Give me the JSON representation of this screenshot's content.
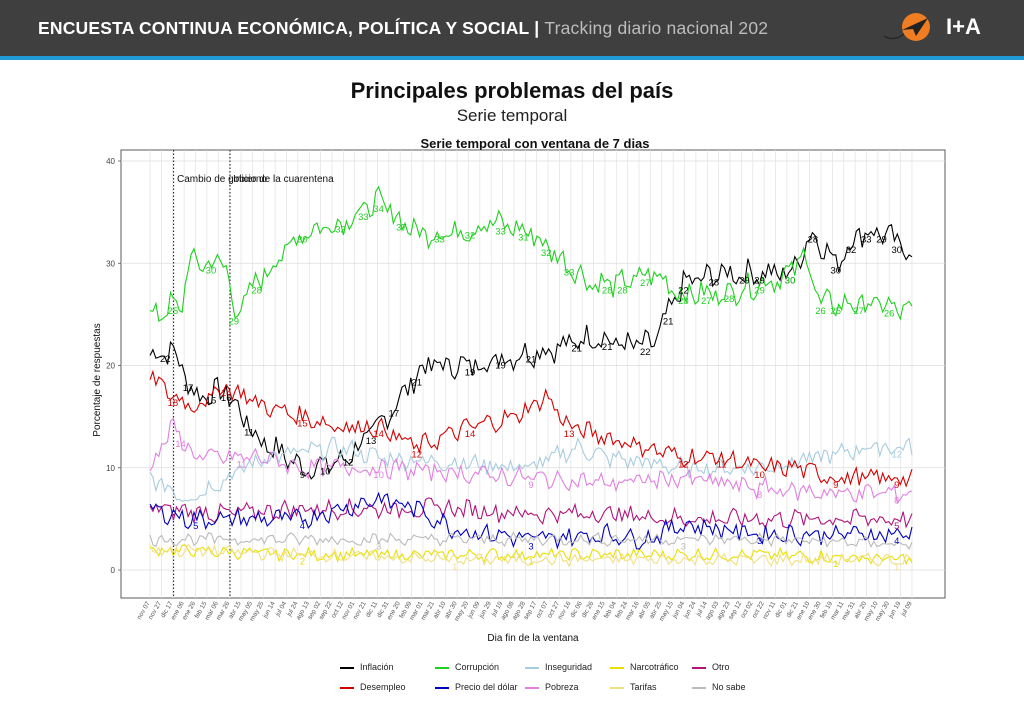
{
  "header": {
    "title": "ENCUESTA CONTINUA ECONÓMICA, POLÍTICA Y SOCIAL",
    "separator": "|",
    "subtitle": "Tracking diario nacional 202",
    "logo_text": "I+A"
  },
  "page_title": "Principales problemas del país",
  "page_subtitle": "Serie temporal",
  "colors": {
    "header_bg": "#3f3f3f",
    "header_stripe": "#1e9ad6",
    "logo_circle": "#f07d22"
  },
  "chart_data": {
    "type": "line",
    "title": "Serie temporal con ventana de 7 dias",
    "xlabel": "Dia fin de la ventana",
    "ylabel": "Porcentaje de respuestas",
    "ylim": [
      0,
      40
    ],
    "yticks": [
      0,
      10,
      20,
      30,
      40
    ],
    "grid": true,
    "legend_position": "bottom",
    "annotations": [
      {
        "text": "Cambio de gobierno"
      },
      {
        "text": "Inicio de la cuarentena"
      }
    ],
    "x_tick_labels": [
      "nov 07",
      "nov 27",
      "dic 17",
      "ene 06",
      "ene 26",
      "feb 15",
      "mar 06",
      "mar 26",
      "abr 15",
      "may 05",
      "may 25",
      "jun 14",
      "jul 04",
      "jul 24",
      "ago 13",
      "sep 02",
      "sep 22",
      "oct 12",
      "nov 01",
      "nov 21",
      "dic 11",
      "dic 31",
      "ene 20",
      "feb 09",
      "mar 01",
      "mar 21",
      "abr 10",
      "abr 30",
      "may 20",
      "jun 09",
      "jun 29",
      "jul 19",
      "ago 08",
      "ago 28",
      "sep 17",
      "oct 07",
      "oct 27",
      "nov 16",
      "dic 06",
      "dic 26",
      "ene 15",
      "feb 04",
      "feb 24",
      "mar 16",
      "abr 05",
      "abr 25",
      "may 15",
      "jun 04",
      "jun 24",
      "jul 14",
      "ago 03",
      "ago 23",
      "sep 12",
      "oct 02",
      "oct 22",
      "nov 11",
      "dic 01",
      "dic 21",
      "ene 10",
      "ene 30",
      "feb 19",
      "mar 11",
      "mar 31",
      "abr 20",
      "may 10",
      "may 30",
      "jun 19",
      "jul 09"
    ],
    "series": [
      {
        "name": "Inflación",
        "color": "#000000",
        "labels": [
          [
            "22",
            0.02
          ],
          [
            "17",
            0.05
          ],
          [
            "15",
            0.08
          ],
          [
            "16",
            0.1
          ],
          [
            "11",
            0.13
          ],
          [
            "9",
            0.2
          ],
          [
            "10",
            0.23
          ],
          [
            "12",
            0.26
          ],
          [
            "13",
            0.29
          ],
          [
            "17",
            0.32
          ],
          [
            "21",
            0.35
          ],
          [
            "19",
            0.42
          ],
          [
            "19",
            0.46
          ],
          [
            "21",
            0.5
          ],
          [
            "21",
            0.56
          ],
          [
            "21",
            0.6
          ],
          [
            "22",
            0.65
          ],
          [
            "21",
            0.68
          ],
          [
            "22",
            0.7
          ],
          [
            "28",
            0.74
          ],
          [
            "29",
            0.78
          ],
          [
            "29",
            0.8
          ],
          [
            "30",
            0.84
          ],
          [
            "28",
            0.87
          ],
          [
            "30",
            0.9
          ],
          [
            "32",
            0.92
          ],
          [
            "33",
            0.94
          ],
          [
            "29",
            0.96
          ],
          [
            "30",
            0.98
          ]
        ]
      },
      {
        "name": "Corrupción",
        "color": "#1fd01f",
        "labels": [
          [
            "25",
            0.03
          ],
          [
            "30",
            0.08
          ],
          [
            "29",
            0.11
          ],
          [
            "28",
            0.14
          ],
          [
            "30",
            0.2
          ],
          [
            "32",
            0.25
          ],
          [
            "33",
            0.28
          ],
          [
            "34",
            0.3
          ],
          [
            "37",
            0.33
          ],
          [
            "33",
            0.38
          ],
          [
            "32",
            0.42
          ],
          [
            "33",
            0.46
          ],
          [
            "31",
            0.49
          ],
          [
            "32",
            0.52
          ],
          [
            "33",
            0.55
          ],
          [
            "28",
            0.6
          ],
          [
            "28",
            0.62
          ],
          [
            "27",
            0.65
          ],
          [
            "28",
            0.7
          ],
          [
            "27",
            0.73
          ],
          [
            "28",
            0.76
          ],
          [
            "29",
            0.8
          ],
          [
            "30",
            0.84
          ],
          [
            "26",
            0.88
          ],
          [
            "25",
            0.9
          ],
          [
            "27",
            0.93
          ],
          [
            "26",
            0.97
          ]
        ]
      },
      {
        "name": "Inseguridad",
        "color": "#a8cce0",
        "labels": [
          [
            "12",
            0.98
          ]
        ]
      },
      {
        "name": "Narcotráfico",
        "color": "#e8e000",
        "labels": [
          [
            "2",
            0.2
          ],
          [
            "1",
            0.5
          ],
          [
            "1",
            0.9
          ]
        ]
      },
      {
        "name": "Otro",
        "color": "#b0147a",
        "labels": [
          [
            "5",
            0.98
          ]
        ]
      },
      {
        "name": "Desempleo",
        "color": "#d40000",
        "labels": [
          [
            "18",
            0.03
          ],
          [
            "14",
            0.1
          ],
          [
            "15",
            0.2
          ],
          [
            "14",
            0.3
          ],
          [
            "12",
            0.35
          ],
          [
            "14",
            0.42
          ],
          [
            "13",
            0.55
          ],
          [
            "12",
            0.7
          ],
          [
            "11",
            0.75
          ],
          [
            "10",
            0.8
          ],
          [
            "9",
            0.9
          ],
          [
            "9",
            0.98
          ]
        ]
      },
      {
        "name": "Precio del dólar",
        "color": "#0000c0",
        "labels": [
          [
            "5",
            0.06
          ],
          [
            "4",
            0.2
          ],
          [
            "3",
            0.5
          ],
          [
            "3",
            0.8
          ],
          [
            "4",
            0.98
          ]
        ]
      },
      {
        "name": "Pobreza",
        "color": "#e080e0",
        "labels": [
          [
            "14",
            0.04
          ],
          [
            "11",
            0.12
          ],
          [
            "10",
            0.3
          ],
          [
            "9",
            0.5
          ],
          [
            "8",
            0.8
          ],
          [
            "8",
            0.98
          ]
        ]
      },
      {
        "name": "Tarifas",
        "color": "#f0e080",
        "labels": [
          [
            "1",
            0.4
          ],
          [
            "1",
            0.98
          ]
        ]
      },
      {
        "name": "No sabe",
        "color": "#bbbbbb",
        "labels": [
          [
            "3",
            0.3
          ],
          [
            "3",
            0.7
          ]
        ]
      }
    ]
  },
  "legend": {
    "items": [
      "Inflación",
      "Corrupción",
      "Inseguridad",
      "Narcotráfico",
      "Otro",
      "Desempleo",
      "Precio del dólar",
      "Pobreza",
      "Tarifas",
      "No sabe"
    ]
  }
}
